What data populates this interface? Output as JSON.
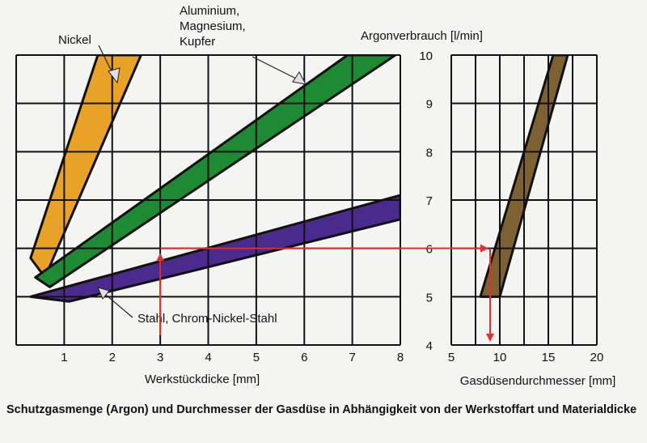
{
  "caption": "Schutzgasmenge (Argon) und Durchmesser der Gasdüse in Abhängigkeit von der Werkstoffart und Materialdicke",
  "colors": {
    "nickel": "#e8a227",
    "aluminium": "#1e8a34",
    "stahl": "#4a2a8c",
    "gas": "#7d6133",
    "arrow": "#e03030",
    "grid": "#111111"
  },
  "chart_data": [
    {
      "type": "area",
      "xlabel": "Werkstückdicke [mm]",
      "ylabel": "Argonverbrauch [l/min]",
      "xlim": [
        0,
        8
      ],
      "ylim": [
        4,
        10
      ],
      "x_ticks": [
        "1",
        "2",
        "3",
        "4",
        "5",
        "6",
        "7",
        "8"
      ],
      "y_ticks": [
        "4",
        "5",
        "6",
        "7",
        "8",
        "9",
        "10"
      ],
      "series": [
        {
          "name": "Nickel",
          "color": "#e8a227",
          "lower": [
            [
              0.6,
              5.4
            ],
            [
              2.6,
              10
            ]
          ],
          "upper": [
            [
              0.3,
              5.8
            ],
            [
              1.7,
              10
            ]
          ]
        },
        {
          "name": "Aluminium, Magnesium, Kupfer",
          "color": "#1e8a34",
          "lower": [
            [
              0.7,
              5.2
            ],
            [
              7.9,
              10
            ]
          ],
          "upper": [
            [
              0.4,
              5.4
            ],
            [
              6.9,
              10
            ]
          ]
        },
        {
          "name": "Stahl, Chrom-Nickel-Stahl",
          "color": "#4a2a8c",
          "lower": [
            [
              1.1,
              4.9
            ],
            [
              8,
              6.6
            ]
          ],
          "upper": [
            [
              0.3,
              5.0
            ],
            [
              8,
              7.1
            ]
          ]
        }
      ],
      "annotations": [
        {
          "text": "Nickel",
          "x": 1.2,
          "y": 10.45
        },
        {
          "text": "Aluminium,\nMagnesium,\nKupfer",
          "x": 3.9,
          "y": 10.9
        },
        {
          "text": "Stahl, Chrom-Nickel-Stahl",
          "x": 4.7,
          "y": 4.45
        }
      ],
      "guide": {
        "x": 3,
        "y": 6,
        "from_y": 4
      }
    },
    {
      "type": "area",
      "xlabel": "Gasdüsendurchmesser [mm]",
      "xlim": [
        5,
        20
      ],
      "ylim": [
        4,
        10
      ],
      "x_ticks": [
        "5",
        "10",
        "15",
        "20"
      ],
      "series": [
        {
          "name": "",
          "color": "#7d6133",
          "lower": [
            [
              10,
              5
            ],
            [
              17,
              10
            ]
          ],
          "upper": [
            [
              8,
              5
            ],
            [
              15.5,
              10
            ]
          ]
        }
      ],
      "guide": {
        "x": 9,
        "y": 6,
        "to_y": 4.1
      }
    }
  ]
}
